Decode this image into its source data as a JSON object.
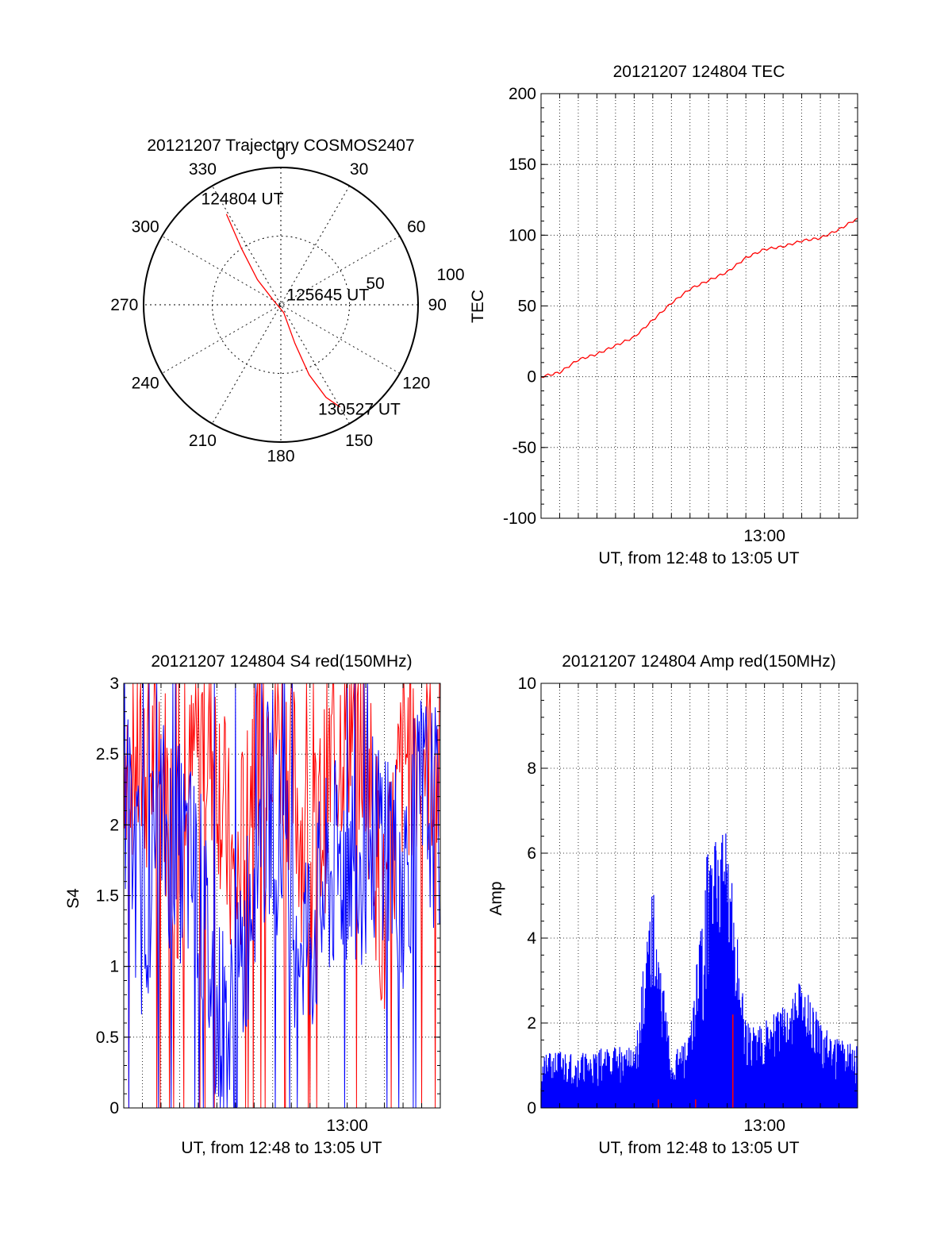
{
  "chart_data": [
    {
      "type": "polar",
      "title": "20121207 Trajectory COSMOS2407",
      "angle_labels": [
        "0",
        "30",
        "60",
        "90",
        "120",
        "150",
        "180",
        "210",
        "240",
        "270",
        "300",
        "330"
      ],
      "radius_labels": [
        "50",
        "100"
      ],
      "rlim": [
        0,
        100
      ],
      "grid": true,
      "series": [
        {
          "color": "#ff0000",
          "points": [
            {
              "az": 329,
              "r": 77
            },
            {
              "az": 325,
              "r": 50
            },
            {
              "az": 317,
              "r": 25
            },
            {
              "az": 300,
              "r": 6
            },
            {
              "az": 160,
              "r": 6
            },
            {
              "az": 160,
              "r": 30
            },
            {
              "az": 158,
              "r": 55
            },
            {
              "az": 154,
              "r": 75
            },
            {
              "az": 150,
              "r": 86
            }
          ]
        }
      ],
      "annotations": [
        {
          "text": "124804 UT",
          "az": 340,
          "r": 82
        },
        {
          "text": "125645 UT",
          "az": 78,
          "r": 35
        },
        {
          "text": "130527 UT",
          "az": 143,
          "r": 95
        }
      ]
    },
    {
      "type": "line",
      "title": "20121207 124804 TEC",
      "xlabel": "UT, from 12:48 to 13:05 UT",
      "ylabel": "TEC",
      "xlim": [
        "12:48",
        "13:05"
      ],
      "ylim": [
        -100,
        200
      ],
      "x_ticks": [
        "13:00"
      ],
      "y_ticks": [
        "-100",
        "-50",
        "0",
        "50",
        "100",
        "150",
        "200"
      ],
      "grid": true,
      "series": [
        {
          "color": "#ff0000",
          "x": [
            "12:48",
            "12:49",
            "12:50",
            "12:51",
            "12:52",
            "12:53",
            "12:54",
            "12:55",
            "12:56",
            "12:57",
            "12:58",
            "12:59",
            "13:00",
            "13:01",
            "13:02",
            "13:03",
            "13:04",
            "13:05"
          ],
          "y": [
            0,
            3,
            12,
            16,
            22,
            28,
            40,
            52,
            62,
            68,
            74,
            84,
            90,
            92,
            96,
            98,
            104,
            112
          ]
        }
      ]
    },
    {
      "type": "line",
      "title": "20121207 124804 S4 red(150MHz)",
      "xlabel": "UT, from 12:48 to 13:05 UT",
      "ylabel": "S4",
      "xlim": [
        "12:48",
        "13:05"
      ],
      "ylim": [
        0,
        3
      ],
      "x_ticks": [
        "13:00"
      ],
      "y_ticks": [
        "0",
        "0.5",
        "1",
        "1.5",
        "2",
        "2.5",
        "3"
      ],
      "grid": true,
      "series": [
        {
          "color": "#ff0000",
          "x": [
            "12:48",
            "12:49",
            "12:50",
            "12:51",
            "12:52",
            "12:53",
            "12:54",
            "12:55",
            "12:56",
            "12:57",
            "12:58",
            "12:59",
            "13:00",
            "13:01",
            "13:02",
            "13:03",
            "13:04",
            "13:05"
          ],
          "y": [
            2.6,
            2.4,
            2.5,
            1.6,
            2.7,
            2.5,
            1.4,
            2.6,
            2.8,
            2.4,
            1.6,
            2.3,
            2.8,
            2.6,
            1.2,
            2.5,
            2.6,
            2.4
          ]
        },
        {
          "color": "#0000ff",
          "x": [
            "12:48",
            "12:49",
            "12:50",
            "12:51",
            "12:52",
            "12:53",
            "12:54",
            "12:55",
            "12:56",
            "12:57",
            "12:58",
            "12:59",
            "13:00",
            "13:01",
            "13:02",
            "13:03",
            "13:04",
            "13:05"
          ],
          "y": [
            2.2,
            1.4,
            2.0,
            1.8,
            1.6,
            0.6,
            0.5,
            1.8,
            2.2,
            1.4,
            1.2,
            1.6,
            1.8,
            1.8,
            2.0,
            1.6,
            2.2,
            2.0
          ]
        }
      ]
    },
    {
      "type": "line",
      "title": "20121207 124804 Amp red(150MHz)",
      "xlabel": "UT, from 12:48 to 13:05 UT",
      "ylabel": "Amp",
      "xlim": [
        "12:48",
        "13:05"
      ],
      "ylim": [
        0,
        10
      ],
      "x_ticks": [
        "13:00"
      ],
      "y_ticks": [
        "0",
        "2",
        "4",
        "6",
        "8",
        "10"
      ],
      "grid": true,
      "series": [
        {
          "color": "#0000ff",
          "x": [
            "12:48",
            "12:49",
            "12:50",
            "12:51",
            "12:52",
            "12:53",
            "12:54",
            "12:55",
            "12:56",
            "12:57",
            "12:58",
            "12:59",
            "13:00",
            "13:01",
            "13:02",
            "13:03",
            "13:04",
            "13:05"
          ],
          "y": [
            1.2,
            1.4,
            1.3,
            1.4,
            1.5,
            1.4,
            5.3,
            1.2,
            1.8,
            6.5,
            6.6,
            2.0,
            2.2,
            2.4,
            3.2,
            2.0,
            1.8,
            1.5
          ]
        },
        {
          "color": "#ff0000",
          "x": [
            "12:54",
            "12:56",
            "12:58"
          ],
          "y": [
            0.2,
            0.2,
            2.2
          ]
        }
      ]
    }
  ]
}
